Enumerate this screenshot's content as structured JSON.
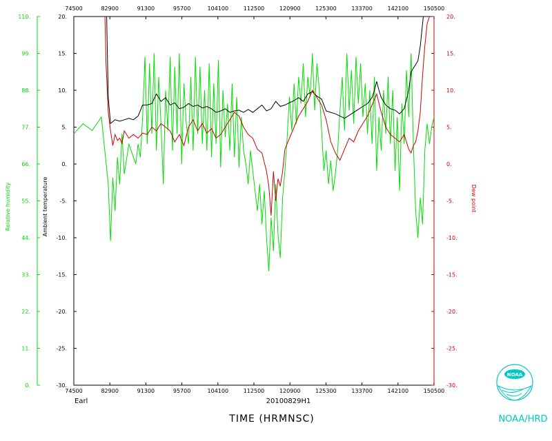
{
  "chart_data": {
    "type": "line",
    "title": "",
    "xlabel": "TIME (HRMNSC)",
    "storm_name": "Earl",
    "flight_id": "20100829H1",
    "x_ticks": [
      "74500",
      "82900",
      "91300",
      "95700",
      "104100",
      "112500",
      "120900",
      "125300",
      "133700",
      "142100",
      "150500"
    ],
    "left_axis": {
      "label": "Ambient temperature",
      "color": "#000000",
      "ylim": [
        -30,
        20
      ],
      "ticks": [
        "20.",
        "15.",
        "10.",
        "5.",
        "0.",
        "-5.",
        "-10.",
        "-15.",
        "-20.",
        "-25.",
        "-30."
      ]
    },
    "rh_axis": {
      "label": "Relative humidity",
      "color": "#00dd00",
      "ylim": [
        0,
        110
      ],
      "ticks": [
        "110.",
        "99.",
        "88.",
        "77.",
        "66.",
        "55.",
        "44.",
        "33.",
        "22.",
        "11.",
        "0."
      ]
    },
    "right_axis": {
      "label": "Dew point",
      "color": "#cc0000",
      "ylim": [
        -30,
        20
      ],
      "ticks": [
        "20.",
        "15.",
        "10.",
        "5.",
        "0.",
        "-5.",
        "-10.",
        "-15.",
        "-20.",
        "-25.",
        "-30."
      ]
    },
    "series": [
      {
        "name": "Relative humidity",
        "color": "#00dd00",
        "axis": "rh",
        "values": [
          [
            0,
            75
          ],
          [
            4,
            78
          ],
          [
            8,
            76
          ],
          [
            12,
            80
          ],
          [
            15,
            60
          ],
          [
            16,
            43
          ],
          [
            17,
            62
          ],
          [
            18,
            52
          ],
          [
            19,
            68
          ],
          [
            20,
            60
          ],
          [
            21,
            75
          ],
          [
            22,
            63
          ],
          [
            24,
            72
          ],
          [
            26,
            68
          ],
          [
            27,
            66
          ],
          [
            28,
            72
          ],
          [
            29,
            68
          ],
          [
            30,
            80
          ],
          [
            31,
            98
          ],
          [
            32,
            72
          ],
          [
            33,
            96
          ],
          [
            34,
            75
          ],
          [
            35,
            99
          ],
          [
            36,
            70
          ],
          [
            37,
            92
          ],
          [
            38,
            78
          ],
          [
            39,
            60
          ],
          [
            40,
            88
          ],
          [
            41,
            76
          ],
          [
            42,
            98
          ],
          [
            43,
            70
          ],
          [
            44,
            95
          ],
          [
            45,
            75
          ],
          [
            46,
            99
          ],
          [
            47,
            66
          ],
          [
            48,
            90
          ],
          [
            49,
            78
          ],
          [
            50,
            72
          ],
          [
            51,
            92
          ],
          [
            52,
            70
          ],
          [
            53,
            98
          ],
          [
            54,
            75
          ],
          [
            55,
            95
          ],
          [
            56,
            72
          ],
          [
            57,
            88
          ],
          [
            58,
            70
          ],
          [
            59,
            96
          ],
          [
            60,
            68
          ],
          [
            61,
            90
          ],
          [
            62,
            72
          ],
          [
            63,
            97
          ],
          [
            64,
            65
          ],
          [
            65,
            88
          ],
          [
            66,
            74
          ],
          [
            67,
            84
          ],
          [
            68,
            70
          ],
          [
            69,
            90
          ],
          [
            70,
            68
          ],
          [
            71,
            86
          ],
          [
            72,
            65
          ],
          [
            73,
            80
          ],
          [
            74,
            70
          ],
          [
            75,
            66
          ],
          [
            76,
            60
          ],
          [
            77,
            70
          ],
          [
            78,
            64
          ],
          [
            79,
            58
          ],
          [
            80,
            52
          ],
          [
            81,
            60
          ],
          [
            82,
            48
          ],
          [
            83,
            58
          ],
          [
            84,
            44
          ],
          [
            85,
            34
          ],
          [
            86,
            50
          ],
          [
            87,
            40
          ],
          [
            88,
            60
          ],
          [
            89,
            45
          ],
          [
            90,
            38
          ],
          [
            91,
            56
          ],
          [
            92,
            64
          ],
          [
            93,
            74
          ],
          [
            94,
            86
          ],
          [
            95,
            76
          ],
          [
            96,
            90
          ],
          [
            97,
            78
          ],
          [
            98,
            92
          ],
          [
            99,
            84
          ],
          [
            100,
            96
          ],
          [
            101,
            80
          ],
          [
            102,
            92
          ],
          [
            103,
            86
          ],
          [
            104,
            99
          ],
          [
            105,
            82
          ],
          [
            106,
            96
          ],
          [
            107,
            88
          ],
          [
            108,
            76
          ],
          [
            109,
            64
          ],
          [
            110,
            70
          ],
          [
            111,
            60
          ],
          [
            112,
            67
          ],
          [
            113,
            58
          ],
          [
            114,
            63
          ],
          [
            115,
            70
          ],
          [
            116,
            82
          ],
          [
            117,
            92
          ],
          [
            118,
            76
          ],
          [
            119,
            99
          ],
          [
            120,
            82
          ],
          [
            121,
            94
          ],
          [
            122,
            78
          ],
          [
            123,
            98
          ],
          [
            124,
            84
          ],
          [
            125,
            96
          ],
          [
            126,
            80
          ],
          [
            127,
            90
          ],
          [
            128,
            75
          ],
          [
            129,
            88
          ],
          [
            130,
            72
          ],
          [
            131,
            92
          ],
          [
            132,
            64
          ],
          [
            133,
            80
          ],
          [
            134,
            70
          ],
          [
            135,
            88
          ],
          [
            136,
            75
          ],
          [
            137,
            92
          ],
          [
            138,
            72
          ],
          [
            139,
            88
          ],
          [
            140,
            64
          ],
          [
            141,
            80
          ],
          [
            142,
            58
          ],
          [
            143,
            84
          ],
          [
            144,
            72
          ],
          [
            145,
            94
          ],
          [
            146,
            80
          ],
          [
            147,
            99
          ],
          [
            148,
            72
          ],
          [
            149,
            52
          ],
          [
            150,
            44
          ],
          [
            151,
            56
          ],
          [
            152,
            48
          ],
          [
            153,
            70
          ],
          [
            154,
            78
          ],
          [
            155,
            72
          ],
          [
            156,
            77
          ],
          [
            157,
            80
          ]
        ]
      },
      {
        "name": "Ambient temperature",
        "color": "#000000",
        "axis": "left",
        "values": [
          [
            14,
            25
          ],
          [
            15,
            9
          ],
          [
            16,
            5.5
          ],
          [
            18,
            6
          ],
          [
            20,
            5.8
          ],
          [
            22,
            6
          ],
          [
            24,
            6.2
          ],
          [
            26,
            6
          ],
          [
            28,
            6.5
          ],
          [
            30,
            8
          ],
          [
            32,
            8
          ],
          [
            34,
            8.2
          ],
          [
            36,
            9.5
          ],
          [
            38,
            8.5
          ],
          [
            40,
            9
          ],
          [
            42,
            8
          ],
          [
            44,
            8.3
          ],
          [
            46,
            7.5
          ],
          [
            48,
            7.7
          ],
          [
            50,
            8.2
          ],
          [
            52,
            7.8
          ],
          [
            54,
            8
          ],
          [
            56,
            7.6
          ],
          [
            58,
            7.8
          ],
          [
            60,
            7.5
          ],
          [
            62,
            7
          ],
          [
            64,
            7.2
          ],
          [
            66,
            7.5
          ],
          [
            68,
            7
          ],
          [
            70,
            7.2
          ],
          [
            72,
            7.3
          ],
          [
            74,
            7
          ],
          [
            76,
            7.4
          ],
          [
            78,
            7
          ],
          [
            80,
            7.5
          ],
          [
            82,
            8
          ],
          [
            84,
            7.2
          ],
          [
            86,
            7.5
          ],
          [
            88,
            8.5
          ],
          [
            90,
            7.8
          ],
          [
            92,
            8
          ],
          [
            94,
            8.3
          ],
          [
            96,
            8.6
          ],
          [
            98,
            9
          ],
          [
            100,
            8.5
          ],
          [
            102,
            9.5
          ],
          [
            104,
            9.8
          ],
          [
            106,
            9.2
          ],
          [
            108,
            8.8
          ],
          [
            110,
            7.2
          ],
          [
            112,
            7
          ],
          [
            114,
            6.8
          ],
          [
            116,
            6.5
          ],
          [
            118,
            6.2
          ],
          [
            120,
            6.6
          ],
          [
            122,
            7
          ],
          [
            124,
            7.4
          ],
          [
            126,
            7.8
          ],
          [
            128,
            8.2
          ],
          [
            130,
            9
          ],
          [
            131,
            10
          ],
          [
            132,
            11.2
          ],
          [
            133,
            10
          ],
          [
            134,
            9
          ],
          [
            136,
            8
          ],
          [
            138,
            7.5
          ],
          [
            140,
            7.3
          ],
          [
            142,
            6.8
          ],
          [
            144,
            7.5
          ],
          [
            146,
            10
          ],
          [
            147,
            12.5
          ],
          [
            148,
            13
          ],
          [
            149,
            13.5
          ],
          [
            150,
            14
          ],
          [
            151,
            16
          ],
          [
            152,
            19
          ],
          [
            153,
            22
          ]
        ]
      },
      {
        "name": "Dew point",
        "color": "#cc0000",
        "axis": "right",
        "values": [
          [
            13,
            28
          ],
          [
            14,
            14
          ],
          [
            15,
            7
          ],
          [
            16,
            4.5
          ],
          [
            17,
            2.5
          ],
          [
            18,
            4
          ],
          [
            19,
            3.2
          ],
          [
            20,
            3.5
          ],
          [
            21,
            2.8
          ],
          [
            22,
            4.5
          ],
          [
            24,
            3.5
          ],
          [
            26,
            4
          ],
          [
            28,
            3.5
          ],
          [
            30,
            4.2
          ],
          [
            32,
            4
          ],
          [
            34,
            5
          ],
          [
            36,
            4.5
          ],
          [
            38,
            5.5
          ],
          [
            40,
            5
          ],
          [
            42,
            4.5
          ],
          [
            44,
            3
          ],
          [
            46,
            4
          ],
          [
            48,
            2.5
          ],
          [
            50,
            5
          ],
          [
            52,
            6
          ],
          [
            54,
            4.5
          ],
          [
            56,
            5.5
          ],
          [
            58,
            4.2
          ],
          [
            60,
            4.8
          ],
          [
            62,
            3.5
          ],
          [
            64,
            4
          ],
          [
            66,
            5
          ],
          [
            68,
            6
          ],
          [
            70,
            7
          ],
          [
            72,
            6.5
          ],
          [
            74,
            5
          ],
          [
            76,
            4
          ],
          [
            78,
            3.5
          ],
          [
            80,
            2
          ],
          [
            82,
            1.5
          ],
          [
            84,
            -1
          ],
          [
            85,
            -3
          ],
          [
            86,
            -7
          ],
          [
            87,
            -1
          ],
          [
            88,
            -5
          ],
          [
            89,
            -2
          ],
          [
            90,
            -3
          ],
          [
            91,
            -1
          ],
          [
            92,
            2
          ],
          [
            94,
            3.5
          ],
          [
            96,
            5
          ],
          [
            98,
            6.5
          ],
          [
            100,
            7.5
          ],
          [
            102,
            8.5
          ],
          [
            104,
            10
          ],
          [
            106,
            9
          ],
          [
            108,
            8
          ],
          [
            110,
            6
          ],
          [
            112,
            3
          ],
          [
            114,
            1.5
          ],
          [
            116,
            0.5
          ],
          [
            118,
            2
          ],
          [
            120,
            3.5
          ],
          [
            122,
            3
          ],
          [
            124,
            4.5
          ],
          [
            126,
            5.5
          ],
          [
            128,
            6.5
          ],
          [
            130,
            8
          ],
          [
            132,
            9.5
          ],
          [
            134,
            7
          ],
          [
            136,
            5
          ],
          [
            138,
            4
          ],
          [
            140,
            3.5
          ],
          [
            142,
            3
          ],
          [
            144,
            4
          ],
          [
            146,
            2
          ],
          [
            147,
            1.5
          ],
          [
            148,
            2.5
          ],
          [
            149,
            3
          ],
          [
            150,
            4.5
          ],
          [
            151,
            7
          ],
          [
            152,
            12
          ],
          [
            153,
            16
          ],
          [
            154,
            19
          ],
          [
            155,
            20
          ],
          [
            156,
            21
          ]
        ]
      }
    ],
    "grid": false,
    "legend": "none"
  },
  "branding": {
    "agency": "NOAA/HRD",
    "logo_text": "NOAA",
    "accent_color": "#00c8c8"
  }
}
